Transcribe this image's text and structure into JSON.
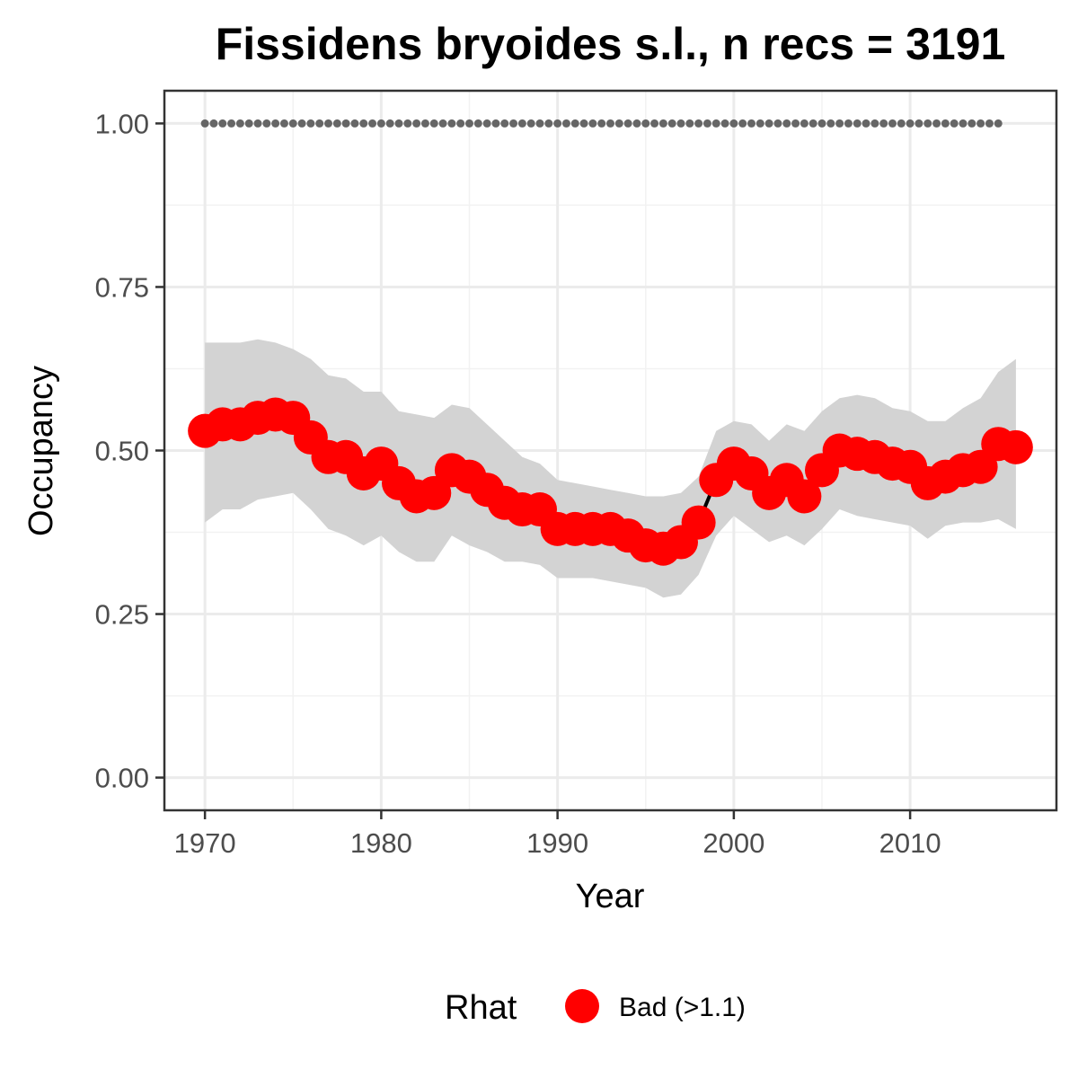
{
  "chart_data": {
    "type": "line",
    "title": "Fissidens bryoides s.l., n recs = 3191",
    "xlabel": "Year",
    "ylabel": "Occupancy",
    "xlim": [
      1967.7,
      2018.3
    ],
    "ylim": [
      -0.05,
      1.05
    ],
    "x_ticks": [
      1970,
      1980,
      1990,
      2000,
      2010
    ],
    "x_tick_labels": [
      "1970",
      "1980",
      "1990",
      "2000",
      "2010"
    ],
    "y_ticks": [
      0,
      0.25,
      0.5,
      0.75,
      1.0
    ],
    "y_tick_labels": [
      "0.00",
      "0.25",
      "0.50",
      "0.75",
      "1.00"
    ],
    "grid": true,
    "legend": {
      "title": "Rhat",
      "position": "bottom",
      "entries": [
        {
          "label": "Bad (>1.1)",
          "color": "#ff0000"
        }
      ]
    },
    "colors": {
      "points": "#ff0000",
      "line": "#000000",
      "ribbon": "#d3d3d3",
      "reference": "#666666"
    },
    "reference_line": {
      "y": 1.0,
      "style": "dotted",
      "x_start": 1970,
      "x_end": 2015
    },
    "series": [
      {
        "name": "Occupancy",
        "x": [
          1970,
          1971,
          1972,
          1973,
          1974,
          1975,
          1976,
          1977,
          1978,
          1979,
          1980,
          1981,
          1982,
          1983,
          1984,
          1985,
          1986,
          1987,
          1988,
          1989,
          1990,
          1991,
          1992,
          1993,
          1994,
          1995,
          1996,
          1997,
          1998,
          1999,
          2000,
          2001,
          2002,
          2003,
          2004,
          2005,
          2006,
          2007,
          2008,
          2009,
          2010,
          2011,
          2012,
          2013,
          2014,
          2015,
          2016
        ],
        "y": [
          0.53,
          0.54,
          0.54,
          0.55,
          0.555,
          0.55,
          0.52,
          0.49,
          0.49,
          0.465,
          0.48,
          0.45,
          0.43,
          0.435,
          0.47,
          0.46,
          0.44,
          0.42,
          0.41,
          0.41,
          0.38,
          0.38,
          0.38,
          0.38,
          0.37,
          0.355,
          0.35,
          0.36,
          0.39,
          0.455,
          0.48,
          0.465,
          0.435,
          0.455,
          0.43,
          0.47,
          0.5,
          0.495,
          0.49,
          0.48,
          0.475,
          0.45,
          0.46,
          0.47,
          0.475,
          0.51,
          0.505
        ],
        "lower": [
          0.39,
          0.41,
          0.41,
          0.425,
          0.43,
          0.435,
          0.41,
          0.38,
          0.37,
          0.355,
          0.37,
          0.345,
          0.33,
          0.33,
          0.37,
          0.355,
          0.345,
          0.33,
          0.33,
          0.325,
          0.305,
          0.305,
          0.305,
          0.3,
          0.295,
          0.29,
          0.275,
          0.28,
          0.31,
          0.37,
          0.4,
          0.38,
          0.36,
          0.37,
          0.355,
          0.38,
          0.41,
          0.4,
          0.395,
          0.39,
          0.385,
          0.365,
          0.385,
          0.39,
          0.39,
          0.395,
          0.38
        ],
        "upper": [
          0.665,
          0.665,
          0.665,
          0.67,
          0.665,
          0.655,
          0.64,
          0.615,
          0.61,
          0.59,
          0.59,
          0.56,
          0.555,
          0.55,
          0.57,
          0.565,
          0.54,
          0.515,
          0.49,
          0.48,
          0.455,
          0.45,
          0.445,
          0.44,
          0.435,
          0.43,
          0.43,
          0.435,
          0.46,
          0.53,
          0.545,
          0.54,
          0.515,
          0.54,
          0.53,
          0.56,
          0.58,
          0.585,
          0.58,
          0.565,
          0.56,
          0.545,
          0.545,
          0.565,
          0.58,
          0.62,
          0.64
        ]
      }
    ]
  }
}
